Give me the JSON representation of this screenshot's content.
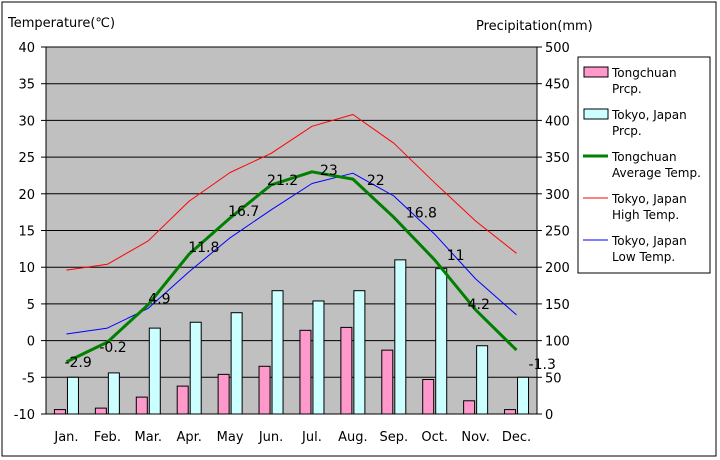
{
  "chart_data": {
    "type": "bar",
    "categories": [
      "Jan.",
      "Feb.",
      "Mar.",
      "Apr.",
      "May",
      "Jun.",
      "Jul.",
      "Aug.",
      "Sep.",
      "Oct.",
      "Nov.",
      "Dec."
    ],
    "left_axis": {
      "label": "Temperature(℃)",
      "ylim": [
        -10,
        40
      ],
      "ticks": [
        "40",
        "35",
        "30",
        "25",
        "20",
        "15",
        "10",
        "5",
        "0",
        "-5",
        "-10"
      ]
    },
    "right_axis": {
      "label": "Precipitation(mm)",
      "ylim": [
        0,
        500
      ],
      "ticks": [
        "500",
        "450",
        "400",
        "350",
        "300",
        "250",
        "200",
        "150",
        "100",
        "50",
        "0"
      ]
    },
    "grid": true,
    "legend_position": "right",
    "series": [
      {
        "name": "Tongchuan Prcp.",
        "type": "bar",
        "axis": "right",
        "color": "#ff99cc",
        "values": [
          6,
          8,
          23,
          38,
          54,
          65,
          114,
          118,
          87,
          47,
          18,
          6
        ]
      },
      {
        "name": "Tokyo, Japan Prcp.",
        "type": "bar",
        "axis": "right",
        "color": "#ccffff",
        "values": [
          50,
          56,
          117,
          125,
          138,
          168,
          154,
          168,
          210,
          198,
          93,
          50
        ]
      },
      {
        "name": "Tongchuan Average Temp.",
        "type": "line",
        "axis": "left",
        "color": "#008000",
        "values": [
          -2.9,
          -0.2,
          4.9,
          11.8,
          16.7,
          21.2,
          23.0,
          22.0,
          16.8,
          11.0,
          4.2,
          -1.3
        ],
        "labels": [
          "-2.9",
          "-0.2",
          "4.9",
          "11.8",
          "16.7",
          "21.2",
          "23",
          "22",
          "16.8",
          "11",
          "4.2",
          "-1.3"
        ]
      },
      {
        "name": "Tokyo, Japan High Temp.",
        "type": "line",
        "axis": "left",
        "color": "#ff0000",
        "values": [
          9.6,
          10.4,
          13.6,
          19.0,
          22.9,
          25.5,
          29.2,
          30.8,
          26.9,
          21.5,
          16.3,
          11.9
        ]
      },
      {
        "name": "Tokyo, Japan Low Temp.",
        "type": "line",
        "axis": "left",
        "color": "#0000ff",
        "values": [
          0.9,
          1.7,
          4.4,
          9.4,
          14.0,
          17.8,
          21.4,
          22.8,
          19.7,
          14.5,
          8.4,
          3.5
        ]
      }
    ],
    "legend": [
      {
        "line1": "Tongchuan",
        "line2": "Prcp.",
        "kind": "bar",
        "color": "#ff99cc"
      },
      {
        "line1": "Tokyo, Japan",
        "line2": "Prcp.",
        "kind": "bar",
        "color": "#ccffff"
      },
      {
        "line1": "Tongchuan",
        "line2": "Average Temp.",
        "kind": "line",
        "color": "#008000"
      },
      {
        "line1": "Tokyo, Japan",
        "line2": "High Temp.",
        "kind": "line",
        "color": "#ff0000"
      },
      {
        "line1": "Tokyo, Japan",
        "line2": "Low Temp.",
        "kind": "line",
        "color": "#0000ff"
      }
    ],
    "colors": {
      "plot_background": "#c0c0c0",
      "grid": "#000000"
    }
  }
}
